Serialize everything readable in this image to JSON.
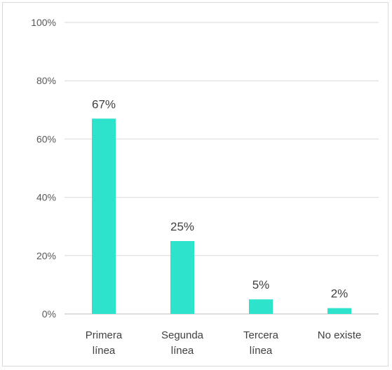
{
  "chart_data": {
    "type": "bar",
    "categories": [
      [
        "Primera",
        "línea"
      ],
      [
        "Segunda",
        "línea"
      ],
      [
        "Tercera",
        "línea"
      ],
      [
        "No existe"
      ]
    ],
    "values": [
      67,
      25,
      5,
      2
    ],
    "data_labels": [
      "67%",
      "25%",
      "5%",
      "2%"
    ],
    "y_ticks": [
      0,
      20,
      40,
      60,
      80,
      100
    ],
    "y_tick_labels": [
      "0%",
      "20%",
      "40%",
      "60%",
      "80%",
      "100%"
    ],
    "ylim": [
      0,
      100
    ],
    "grid": true,
    "legend": "none",
    "bar_color": "#2ee3cc",
    "title": "",
    "xlabel": "",
    "ylabel": ""
  }
}
